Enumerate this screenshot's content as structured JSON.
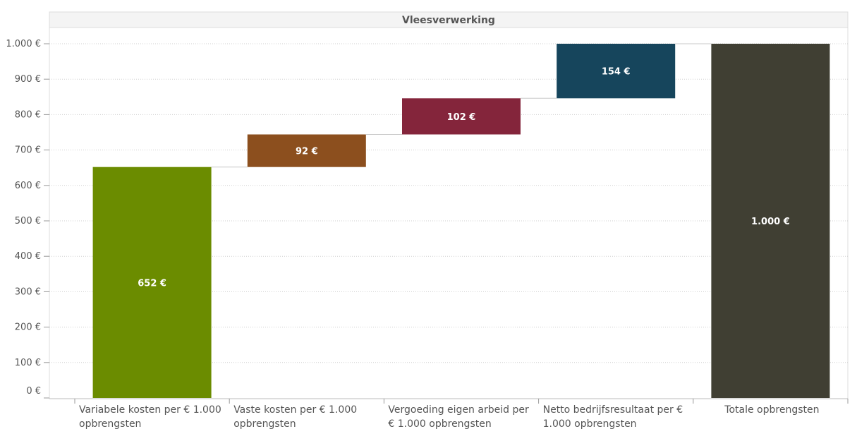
{
  "chart_data": {
    "type": "waterfall",
    "title": "Vleesverwerking",
    "ylim": [
      0,
      1000
    ],
    "y_ticks": [
      0,
      100,
      200,
      300,
      400,
      500,
      600,
      700,
      800,
      900,
      1000
    ],
    "y_tick_labels": [
      "0 €",
      "100 €",
      "200 €",
      "300 €",
      "400 €",
      "500 €",
      "600 €",
      "700 €",
      "800 €",
      "900 €",
      "1.000 €"
    ],
    "grid": true,
    "categories": [
      "Variabele kosten per €  1.000 opbrengsten",
      "Vaste kosten per €  1.000 opbrengsten",
      "Vergoeding eigen arbeid per €  1.000 opbrengsten",
      "Netto bedrijfsresultaat per € 1.000 opbrengsten",
      "Totale opbrengsten"
    ],
    "category_lines": [
      [
        "Variabele kosten per €  1.000",
        "opbrengsten"
      ],
      [
        "Vaste kosten per €  1.000",
        "opbrengsten"
      ],
      [
        "Vergoeding eigen arbeid per",
        "€  1.000 opbrengsten"
      ],
      [
        "Netto bedrijfsresultaat per €",
        "1.000 opbrengsten"
      ],
      [
        "Totale opbrengsten"
      ]
    ],
    "values": [
      652,
      92,
      102,
      154,
      1000
    ],
    "starts": [
      0,
      652,
      744,
      846,
      0
    ],
    "value_labels": [
      "652 €",
      "92 €",
      "102 €",
      "154 €",
      "1.000 €"
    ],
    "colors": [
      "#6b8c00",
      "#8c4f1e",
      "#84253b",
      "#16455c",
      "#403f33"
    ]
  }
}
